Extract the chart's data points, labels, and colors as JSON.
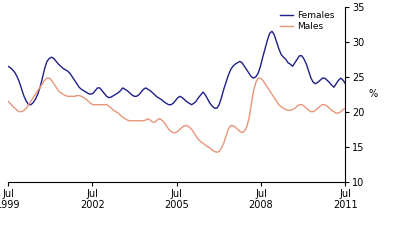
{
  "ylabel": "%",
  "ylim": [
    10,
    35
  ],
  "yticks": [
    10,
    15,
    20,
    25,
    30,
    35
  ],
  "females_color": "#1f1f8c",
  "males_color": "#e8967a",
  "legend_females": "Females",
  "legend_males": "Males",
  "background_color": "#ffffff",
  "linewidth": 1.0,
  "females": [
    26.5,
    26.3,
    26.0,
    25.6,
    25.0,
    24.2,
    23.2,
    22.2,
    21.5,
    21.0,
    21.0,
    21.3,
    21.8,
    22.5,
    23.5,
    24.8,
    26.2,
    27.2,
    27.6,
    27.8,
    27.6,
    27.2,
    26.8,
    26.5,
    26.2,
    26.0,
    25.8,
    25.5,
    25.0,
    24.5,
    24.0,
    23.5,
    23.2,
    23.0,
    22.8,
    22.6,
    22.5,
    22.6,
    23.0,
    23.4,
    23.4,
    23.0,
    22.6,
    22.2,
    22.0,
    22.1,
    22.3,
    22.5,
    22.7,
    23.0,
    23.4,
    23.2,
    23.0,
    22.7,
    22.4,
    22.2,
    22.2,
    22.4,
    22.8,
    23.2,
    23.4,
    23.2,
    23.0,
    22.7,
    22.4,
    22.1,
    21.9,
    21.7,
    21.4,
    21.2,
    21.0,
    21.0,
    21.2,
    21.6,
    22.0,
    22.2,
    22.0,
    21.7,
    21.4,
    21.2,
    21.0,
    21.2,
    21.5,
    22.0,
    22.4,
    22.8,
    22.4,
    21.8,
    21.2,
    20.8,
    20.5,
    20.5,
    21.0,
    22.0,
    23.2,
    24.2,
    25.2,
    26.0,
    26.5,
    26.8,
    27.0,
    27.2,
    27.0,
    26.5,
    26.0,
    25.5,
    25.0,
    24.8,
    25.0,
    25.5,
    26.5,
    27.8,
    29.0,
    30.2,
    31.2,
    31.5,
    31.0,
    30.0,
    29.0,
    28.2,
    27.8,
    27.5,
    27.0,
    26.8,
    26.5,
    27.0,
    27.5,
    28.0,
    28.0,
    27.5,
    26.8,
    25.8,
    24.8,
    24.2,
    24.0,
    24.2,
    24.5,
    24.8,
    24.8,
    24.5,
    24.2,
    23.8,
    23.5,
    24.0,
    24.5,
    24.8,
    24.5,
    24.0
  ],
  "males": [
    21.5,
    21.2,
    20.8,
    20.5,
    20.2,
    20.0,
    20.0,
    20.2,
    20.5,
    21.0,
    21.5,
    22.0,
    22.5,
    23.0,
    23.5,
    24.0,
    24.5,
    24.8,
    24.8,
    24.5,
    24.0,
    23.5,
    23.0,
    22.7,
    22.5,
    22.3,
    22.2,
    22.2,
    22.2,
    22.2,
    22.3,
    22.3,
    22.2,
    22.0,
    21.8,
    21.5,
    21.2,
    21.0,
    21.0,
    21.0,
    21.0,
    21.0,
    21.0,
    21.0,
    20.8,
    20.5,
    20.2,
    20.0,
    19.8,
    19.5,
    19.2,
    19.0,
    18.8,
    18.7,
    18.7,
    18.7,
    18.7,
    18.7,
    18.7,
    18.7,
    18.8,
    19.0,
    18.8,
    18.5,
    18.5,
    18.8,
    19.0,
    18.8,
    18.5,
    18.0,
    17.5,
    17.2,
    17.0,
    17.0,
    17.2,
    17.5,
    17.8,
    18.0,
    18.0,
    17.8,
    17.5,
    17.0,
    16.5,
    16.0,
    15.7,
    15.5,
    15.2,
    15.0,
    14.8,
    14.5,
    14.3,
    14.2,
    14.3,
    14.8,
    15.5,
    16.5,
    17.5,
    18.0,
    18.0,
    17.8,
    17.5,
    17.2,
    17.0,
    17.2,
    17.8,
    19.0,
    21.0,
    23.0,
    24.2,
    24.8,
    24.8,
    24.5,
    24.0,
    23.5,
    23.0,
    22.5,
    22.0,
    21.5,
    21.0,
    20.7,
    20.5,
    20.3,
    20.2,
    20.2,
    20.3,
    20.5,
    20.8,
    21.0,
    21.0,
    20.8,
    20.5,
    20.2,
    20.0,
    20.0,
    20.2,
    20.5,
    20.8,
    21.0,
    21.0,
    20.8,
    20.5,
    20.2,
    20.0,
    19.8,
    19.8,
    20.0,
    20.3,
    20.5
  ]
}
